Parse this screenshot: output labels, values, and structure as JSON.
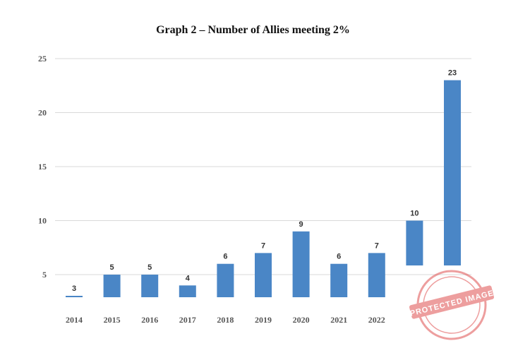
{
  "chart_data": {
    "type": "bar",
    "title": "Graph 2 – Number of Allies meeting 2%",
    "xlabel": "",
    "ylabel": "",
    "categories": [
      "2014",
      "2015",
      "2016",
      "2017",
      "2018",
      "2019",
      "2020",
      "2021",
      "2022",
      "",
      ""
    ],
    "values": [
      3,
      5,
      5,
      4,
      6,
      7,
      9,
      6,
      7,
      10,
      23
    ],
    "ylim": [
      0,
      25
    ],
    "yticks": [
      5,
      10,
      15,
      20,
      25
    ],
    "grid": true,
    "legend": "none",
    "bar_color": "#4a86c6"
  },
  "stamp": {
    "text": "PROTECTED IMAGE"
  }
}
